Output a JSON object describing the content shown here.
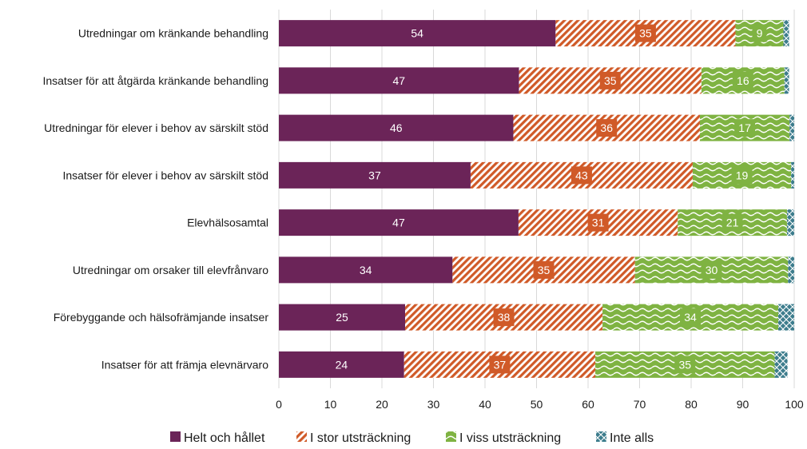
{
  "chart_data": {
    "type": "bar",
    "orientation": "horizontal",
    "stacked": true,
    "categories": [
      "Utredningar om kränkande behandling",
      "Insatser för att åtgärda kränkande behandling",
      "Utredningar för elever i behov av särskilt stöd",
      "Insatser för elever i behov av särskilt stöd",
      "Elevhälsosamtal",
      "Utredningar om orsaker till elevfrånvaro",
      "Förebyggande och hälsofrämjande insatser",
      "Insatser för att främja elevnärvaro"
    ],
    "series": [
      {
        "name": "Helt och hållet",
        "color": "#6b2458",
        "pattern": "solid",
        "values": [
          53.7,
          46.6,
          45.5,
          37.2,
          46.5,
          33.7,
          24.5,
          24.3
        ],
        "labels": [
          "54",
          "47",
          "46",
          "37",
          "47",
          "34",
          "25",
          "24"
        ]
      },
      {
        "name": "I stor utsträckning",
        "color": "#d05a28",
        "pattern": "diagonal",
        "values": [
          34.9,
          35.4,
          36.2,
          43.1,
          30.9,
          35.4,
          38.3,
          37.1
        ],
        "labels": [
          "35",
          "35",
          "36",
          "43",
          "31",
          "35",
          "38",
          "37"
        ]
      },
      {
        "name": "I viss utsträckning",
        "color": "#7fb342",
        "pattern": "wave",
        "values": [
          9.3,
          16.1,
          17.4,
          19.1,
          21.2,
          29.7,
          34.1,
          34.8
        ],
        "labels": [
          "9",
          "16",
          "17",
          "19",
          "21",
          "30",
          "34",
          "35"
        ]
      },
      {
        "name": "Inte alls",
        "color": "#3d7d8d",
        "pattern": "cross",
        "values": [
          1.1,
          0.9,
          0.9,
          0.6,
          1.4,
          1.2,
          3.1,
          2.5
        ],
        "labels": [
          "",
          "",
          "",
          "",
          "",
          "",
          "",
          ""
        ]
      }
    ],
    "xlim": [
      0,
      100
    ],
    "xticks": [
      "0",
      "10",
      "20",
      "30",
      "40",
      "50",
      "60",
      "70",
      "80",
      "90",
      "100"
    ],
    "grid": "vertical",
    "legend_position": "bottom"
  }
}
